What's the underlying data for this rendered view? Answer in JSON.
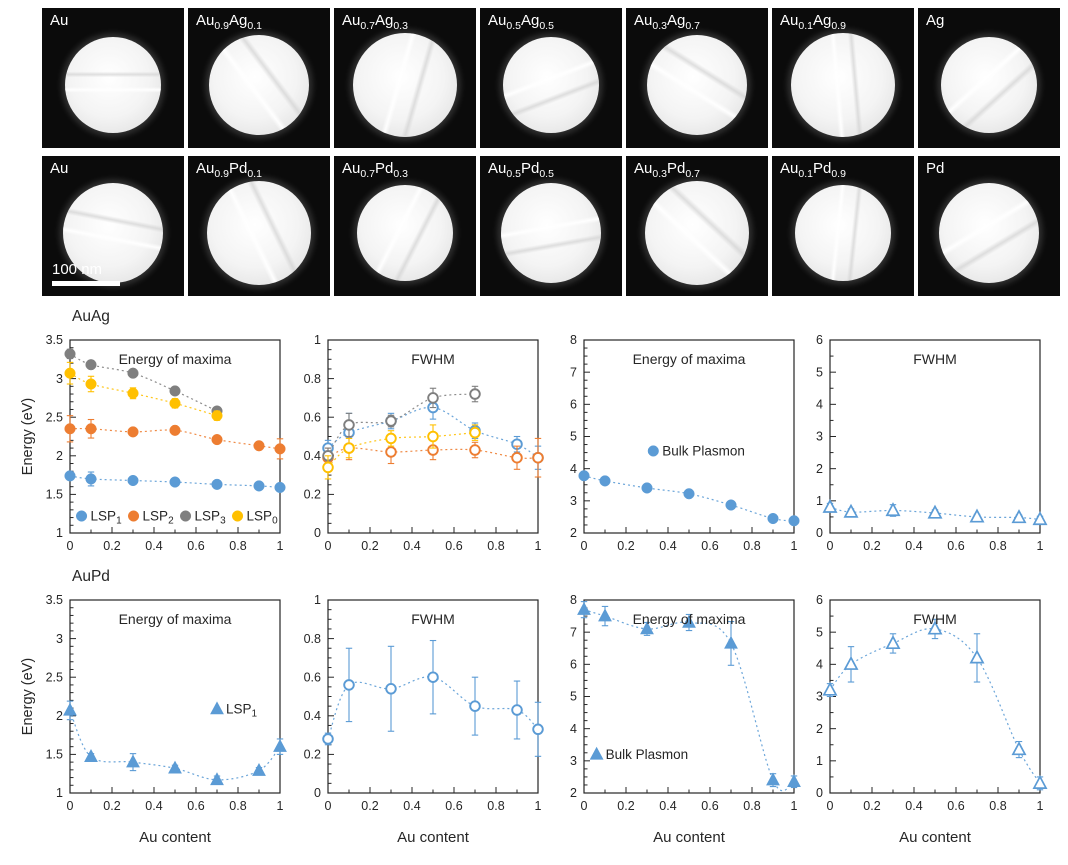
{
  "labels": {
    "auag": "AuAg",
    "aupd": "AuPd"
  },
  "colors": {
    "blue": "#5b9bd5",
    "orange": "#ed7d31",
    "gray": "#7f7f7f",
    "yellow": "#ffc000",
    "axis": "#262626"
  },
  "micrographs": {
    "scale_bar": "100 nm",
    "rows": [
      {
        "name": "AuAg series",
        "tiles": [
          {
            "label": [
              {
                "t": "Au"
              }
            ]
          },
          {
            "label": [
              {
                "t": "Au"
              },
              {
                "s": "0.9"
              },
              {
                "t": "Ag"
              },
              {
                "s": "0.1"
              }
            ]
          },
          {
            "label": [
              {
                "t": "Au"
              },
              {
                "s": "0.7"
              },
              {
                "t": "Ag"
              },
              {
                "s": "0.3"
              }
            ]
          },
          {
            "label": [
              {
                "t": "Au"
              },
              {
                "s": "0.5"
              },
              {
                "t": "Ag"
              },
              {
                "s": "0.5"
              }
            ]
          },
          {
            "label": [
              {
                "t": "Au"
              },
              {
                "s": "0.3"
              },
              {
                "t": "Ag"
              },
              {
                "s": "0.7"
              }
            ]
          },
          {
            "label": [
              {
                "t": "Au"
              },
              {
                "s": "0.1"
              },
              {
                "t": "Ag"
              },
              {
                "s": "0.9"
              }
            ]
          },
          {
            "label": [
              {
                "t": "Ag"
              }
            ]
          }
        ]
      },
      {
        "name": "AuPd series",
        "tiles": [
          {
            "label": [
              {
                "t": "Au"
              }
            ],
            "scalebar": true
          },
          {
            "label": [
              {
                "t": "Au"
              },
              {
                "s": "0.9"
              },
              {
                "t": "Pd"
              },
              {
                "s": "0.1"
              }
            ]
          },
          {
            "label": [
              {
                "t": "Au"
              },
              {
                "s": "0.7"
              },
              {
                "t": "Pd"
              },
              {
                "s": "0.3"
              }
            ]
          },
          {
            "label": [
              {
                "t": "Au"
              },
              {
                "s": "0.5"
              },
              {
                "t": "Pd"
              },
              {
                "s": "0.5"
              }
            ]
          },
          {
            "label": [
              {
                "t": "Au"
              },
              {
                "s": "0.3"
              },
              {
                "t": "Pd"
              },
              {
                "s": "0.7"
              }
            ]
          },
          {
            "label": [
              {
                "t": "Au"
              },
              {
                "s": "0.1"
              },
              {
                "t": "Pd"
              },
              {
                "s": "0.9"
              }
            ]
          },
          {
            "label": [
              {
                "t": "Pd"
              }
            ]
          }
        ]
      }
    ]
  },
  "chart_data": [
    {
      "id": "auag_energy",
      "row": "AuAg",
      "type": "scatter",
      "title": "Energy of maxima",
      "ylabel": "Energy (eV)",
      "xlabel": "",
      "xlim": [
        0,
        1
      ],
      "ylim": [
        1,
        3.5
      ],
      "yticks": [
        1,
        1.5,
        2,
        2.5,
        3,
        3.5
      ],
      "yminor": 0.1,
      "xticks": [
        0,
        0.2,
        0.4,
        0.6,
        0.8,
        1
      ],
      "xminor": 0.1,
      "legend": {
        "x": 0.055,
        "y": 0.912
      },
      "series": [
        {
          "name_parts": [
            {
              "t": "LSP"
            },
            {
              "s": "1"
            }
          ],
          "marker": "circle",
          "open": false,
          "color": "#5b9bd5",
          "x": [
            0,
            0.1,
            0.3,
            0.5,
            0.7,
            0.9,
            1
          ],
          "y": [
            1.74,
            1.7,
            1.68,
            1.66,
            1.63,
            1.61,
            1.59
          ],
          "yerr": [
            0.05,
            0.09,
            0.03,
            0.03,
            0.03,
            0.03,
            0.04
          ]
        },
        {
          "name_parts": [
            {
              "t": "LSP"
            },
            {
              "s": "2"
            }
          ],
          "marker": "circle",
          "open": false,
          "color": "#ed7d31",
          "x": [
            0,
            0.1,
            0.3,
            0.5,
            0.7,
            0.9,
            1
          ],
          "y": [
            2.35,
            2.35,
            2.31,
            2.33,
            2.21,
            2.13,
            2.09
          ],
          "yerr": [
            0.17,
            0.12,
            0.04,
            0.04,
            0.04,
            0.05,
            0.13
          ]
        },
        {
          "name_parts": [
            {
              "t": "LSP"
            },
            {
              "s": "3"
            }
          ],
          "marker": "circle",
          "open": false,
          "color": "#7f7f7f",
          "x": [
            0,
            0.1,
            0.3,
            0.5,
            0.7
          ],
          "y": [
            3.32,
            3.18,
            3.07,
            2.84,
            2.58
          ],
          "yerr": [
            0.06,
            0.05,
            0.04,
            0.04,
            0.05
          ]
        },
        {
          "name_parts": [
            {
              "t": "LSP"
            },
            {
              "s": "0"
            }
          ],
          "marker": "circle",
          "open": false,
          "color": "#ffc000",
          "x": [
            0,
            0.1,
            0.3,
            0.5,
            0.7
          ],
          "y": [
            3.07,
            2.93,
            2.81,
            2.68,
            2.52
          ],
          "yerr": [
            0.14,
            0.1,
            0.07,
            0.06,
            0.06
          ]
        }
      ]
    },
    {
      "id": "auag_fwhm",
      "row": "AuAg",
      "type": "scatter",
      "title": "FWHM",
      "ylabel": "",
      "xlabel": "",
      "xlim": [
        0,
        1
      ],
      "ylim": [
        0,
        1
      ],
      "yticks": [
        0,
        0.2,
        0.4,
        0.6,
        0.8,
        1
      ],
      "yminor": 0.05,
      "xticks": [
        0,
        0.2,
        0.4,
        0.6,
        0.8,
        1
      ],
      "xminor": 0.1,
      "series": [
        {
          "name_parts": [
            {
              "t": "LSP"
            },
            {
              "s": "1"
            }
          ],
          "marker": "circle",
          "open": true,
          "color": "#5b9bd5",
          "x": [
            0,
            0.1,
            0.3,
            0.5,
            0.7,
            0.9,
            1
          ],
          "y": [
            0.44,
            0.52,
            0.58,
            0.65,
            0.53,
            0.46,
            0.39
          ],
          "yerr": [
            0.04,
            0.1,
            0.04,
            0.06,
            0.04,
            0.04,
            0.06
          ]
        },
        {
          "name_parts": [
            {
              "t": "LSP"
            },
            {
              "s": "2"
            }
          ],
          "marker": "circle",
          "open": true,
          "color": "#ed7d31",
          "x": [
            0,
            0.1,
            0.3,
            0.5,
            0.7,
            0.9,
            1
          ],
          "y": [
            0.39,
            0.44,
            0.42,
            0.43,
            0.43,
            0.39,
            0.39
          ],
          "yerr": [
            0.05,
            0.06,
            0.06,
            0.05,
            0.04,
            0.06,
            0.1
          ]
        },
        {
          "name_parts": [
            {
              "t": "LSP"
            },
            {
              "s": "3"
            }
          ],
          "marker": "circle",
          "open": true,
          "color": "#7f7f7f",
          "x": [
            0,
            0.1,
            0.3,
            0.5,
            0.7
          ],
          "y": [
            0.4,
            0.56,
            0.58,
            0.7,
            0.72
          ],
          "yerr": [
            0.04,
            0.06,
            0.03,
            0.05,
            0.04
          ]
        },
        {
          "name_parts": [
            {
              "t": "LSP"
            },
            {
              "s": "0"
            }
          ],
          "marker": "circle",
          "open": true,
          "color": "#ffc000",
          "x": [
            0,
            0.1,
            0.3,
            0.5,
            0.7
          ],
          "y": [
            0.34,
            0.44,
            0.49,
            0.5,
            0.52
          ],
          "yerr": [
            0.06,
            0.05,
            0.04,
            0.06,
            0.04
          ]
        }
      ]
    },
    {
      "id": "auag_bulk_energy",
      "row": "AuAg",
      "type": "scatter",
      "title": "Energy of maxima",
      "ylabel": "",
      "xlabel": "",
      "xlim": [
        0,
        1
      ],
      "ylim": [
        2,
        8
      ],
      "yticks": [
        2,
        3,
        4,
        5,
        6,
        7,
        8
      ],
      "yminor": 0.25,
      "xticks": [
        0,
        0.2,
        0.4,
        0.6,
        0.8,
        1
      ],
      "xminor": 0.1,
      "legend": {
        "x": 0.33,
        "y": 0.575
      },
      "series": [
        {
          "name_parts": [
            {
              "t": "Bulk Plasmon"
            }
          ],
          "marker": "circle",
          "open": false,
          "color": "#5b9bd5",
          "x": [
            0,
            0.1,
            0.3,
            0.5,
            0.7,
            0.9,
            1
          ],
          "y": [
            3.78,
            3.62,
            3.4,
            3.22,
            2.87,
            2.45,
            2.38
          ]
        }
      ]
    },
    {
      "id": "auag_bulk_fwhm",
      "row": "AuAg",
      "type": "scatter",
      "title": "FWHM",
      "ylabel": "",
      "xlabel": "",
      "xlim": [
        0,
        1
      ],
      "ylim": [
        0,
        6
      ],
      "yticks": [
        0,
        1,
        2,
        3,
        4,
        5,
        6
      ],
      "yminor": 0.5,
      "xticks": [
        0,
        0.2,
        0.4,
        0.6,
        0.8,
        1
      ],
      "xminor": 0.1,
      "series": [
        {
          "name_parts": [
            {
              "t": "LSP"
            },
            {
              "s": "1"
            }
          ],
          "marker": "triangle",
          "open": true,
          "color": "#5b9bd5",
          "x": [
            0,
            0.1,
            0.3,
            0.5,
            0.7,
            0.9,
            1
          ],
          "y": [
            0.8,
            0.65,
            0.7,
            0.62,
            0.5,
            0.48,
            0.42
          ],
          "yerr": [
            0.12,
            0.1,
            0.18,
            0.1,
            0.08,
            0.08,
            0.1
          ]
        }
      ]
    },
    {
      "id": "aupd_energy",
      "row": "AuPd",
      "type": "scatter",
      "title": "Energy of maxima",
      "ylabel": "Energy (eV)",
      "xlabel": "Au content",
      "xlim": [
        0,
        1
      ],
      "ylim": [
        1,
        3.5
      ],
      "yticks": [
        1,
        1.5,
        2,
        2.5,
        3,
        3.5
      ],
      "yminor": 0.1,
      "xticks": [
        0,
        0.2,
        0.4,
        0.6,
        0.8,
        1
      ],
      "xminor": 0.1,
      "legend": {
        "x": 0.7,
        "y": 0.565
      },
      "series": [
        {
          "name_parts": [
            {
              "t": "LSP"
            },
            {
              "s": "1"
            }
          ],
          "marker": "triangle",
          "open": false,
          "color": "#5b9bd5",
          "x": [
            0,
            0.1,
            0.3,
            0.5,
            0.7,
            0.9,
            1
          ],
          "y": [
            2.07,
            1.47,
            1.4,
            1.32,
            1.17,
            1.29,
            1.6
          ],
          "yerr": [
            0.12,
            0.04,
            0.11,
            0.04,
            0.05,
            0.04,
            0.1
          ]
        }
      ]
    },
    {
      "id": "aupd_fwhm",
      "row": "AuPd",
      "type": "scatter",
      "title": "FWHM",
      "ylabel": "",
      "xlabel": "Au content",
      "xlim": [
        0,
        1
      ],
      "ylim": [
        0,
        1
      ],
      "yticks": [
        0,
        0.2,
        0.4,
        0.6,
        0.8,
        1
      ],
      "yminor": 0.05,
      "xticks": [
        0,
        0.2,
        0.4,
        0.6,
        0.8,
        1
      ],
      "xminor": 0.1,
      "series": [
        {
          "name_parts": [
            {
              "t": "LSP"
            },
            {
              "s": "1"
            }
          ],
          "marker": "circle",
          "open": true,
          "color": "#5b9bd5",
          "x": [
            0,
            0.1,
            0.3,
            0.5,
            0.7,
            0.9,
            1
          ],
          "y": [
            0.28,
            0.56,
            0.54,
            0.6,
            0.45,
            0.43,
            0.33
          ],
          "yerr": [
            0.03,
            0.19,
            0.22,
            0.19,
            0.15,
            0.15,
            0.14
          ]
        }
      ]
    },
    {
      "id": "aupd_bulk_energy",
      "row": "AuPd",
      "type": "scatter",
      "title": "Energy of maxima",
      "ylabel": "",
      "xlabel": "Au content",
      "xlim": [
        0,
        1
      ],
      "ylim": [
        2,
        8
      ],
      "yticks": [
        2,
        3,
        4,
        5,
        6,
        7,
        8
      ],
      "yminor": 0.25,
      "xticks": [
        0,
        0.2,
        0.4,
        0.6,
        0.8,
        1
      ],
      "xminor": 0.1,
      "legend": {
        "x": 0.06,
        "y": 0.8
      },
      "series": [
        {
          "name_parts": [
            {
              "t": "Bulk Plasmon"
            }
          ],
          "marker": "triangle",
          "open": false,
          "color": "#5b9bd5",
          "x": [
            0,
            0.1,
            0.3,
            0.5,
            0.7,
            0.9,
            1
          ],
          "y": [
            7.7,
            7.5,
            7.1,
            7.3,
            6.65,
            2.4,
            2.35
          ],
          "yerr": [
            0.25,
            0.3,
            0.2,
            0.25,
            0.68,
            0.2,
            0.18
          ]
        }
      ]
    },
    {
      "id": "aupd_bulk_fwhm",
      "row": "AuPd",
      "type": "scatter",
      "title": "FWHM",
      "ylabel": "",
      "xlabel": "Au content",
      "xlim": [
        0,
        1
      ],
      "ylim": [
        0,
        6
      ],
      "yticks": [
        0,
        1,
        2,
        3,
        4,
        5,
        6
      ],
      "yminor": 0.5,
      "xticks": [
        0,
        0.2,
        0.4,
        0.6,
        0.8,
        1
      ],
      "xminor": 0.1,
      "series": [
        {
          "name_parts": [
            {
              "t": "Bulk Plasmon"
            }
          ],
          "marker": "triangle",
          "open": true,
          "color": "#5b9bd5",
          "x": [
            0,
            0.1,
            0.3,
            0.5,
            0.7,
            0.9,
            1
          ],
          "y": [
            3.2,
            4.0,
            4.65,
            5.1,
            4.2,
            1.35,
            0.3
          ],
          "yerr": [
            0.2,
            0.55,
            0.3,
            0.3,
            0.75,
            0.25,
            0.2
          ]
        }
      ]
    }
  ]
}
